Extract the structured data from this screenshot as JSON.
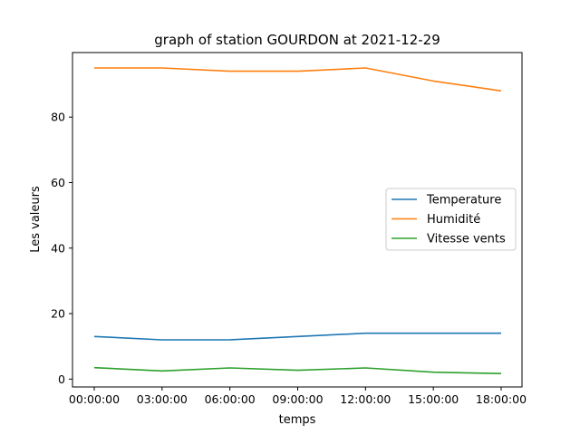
{
  "chart_data": {
    "type": "line",
    "title": "graph of station GOURDON at 2021-12-29",
    "xlabel": "temps",
    "ylabel": "Les valeurs",
    "categories": [
      "00:00:00",
      "03:00:00",
      "06:00:00",
      "09:00:00",
      "12:00:00",
      "15:00:00",
      "18:00:00"
    ],
    "yticks": [
      0,
      20,
      40,
      60,
      80
    ],
    "ylim": [
      -2.4,
      99.7
    ],
    "grid": false,
    "legend_position": "center-right",
    "series": [
      {
        "name": "Temperature",
        "color": "#1f77b4",
        "values": [
          13,
          12,
          12,
          13,
          14,
          14,
          14
        ]
      },
      {
        "name": "Humidité",
        "color": "#ff7f0e",
        "values": [
          95,
          95,
          94,
          94,
          95,
          91,
          88
        ]
      },
      {
        "name": "Vitesse vents",
        "color": "#2ca02c",
        "values": [
          3.5,
          2.5,
          3.4,
          2.7,
          3.4,
          2.1,
          1.7
        ]
      }
    ]
  }
}
